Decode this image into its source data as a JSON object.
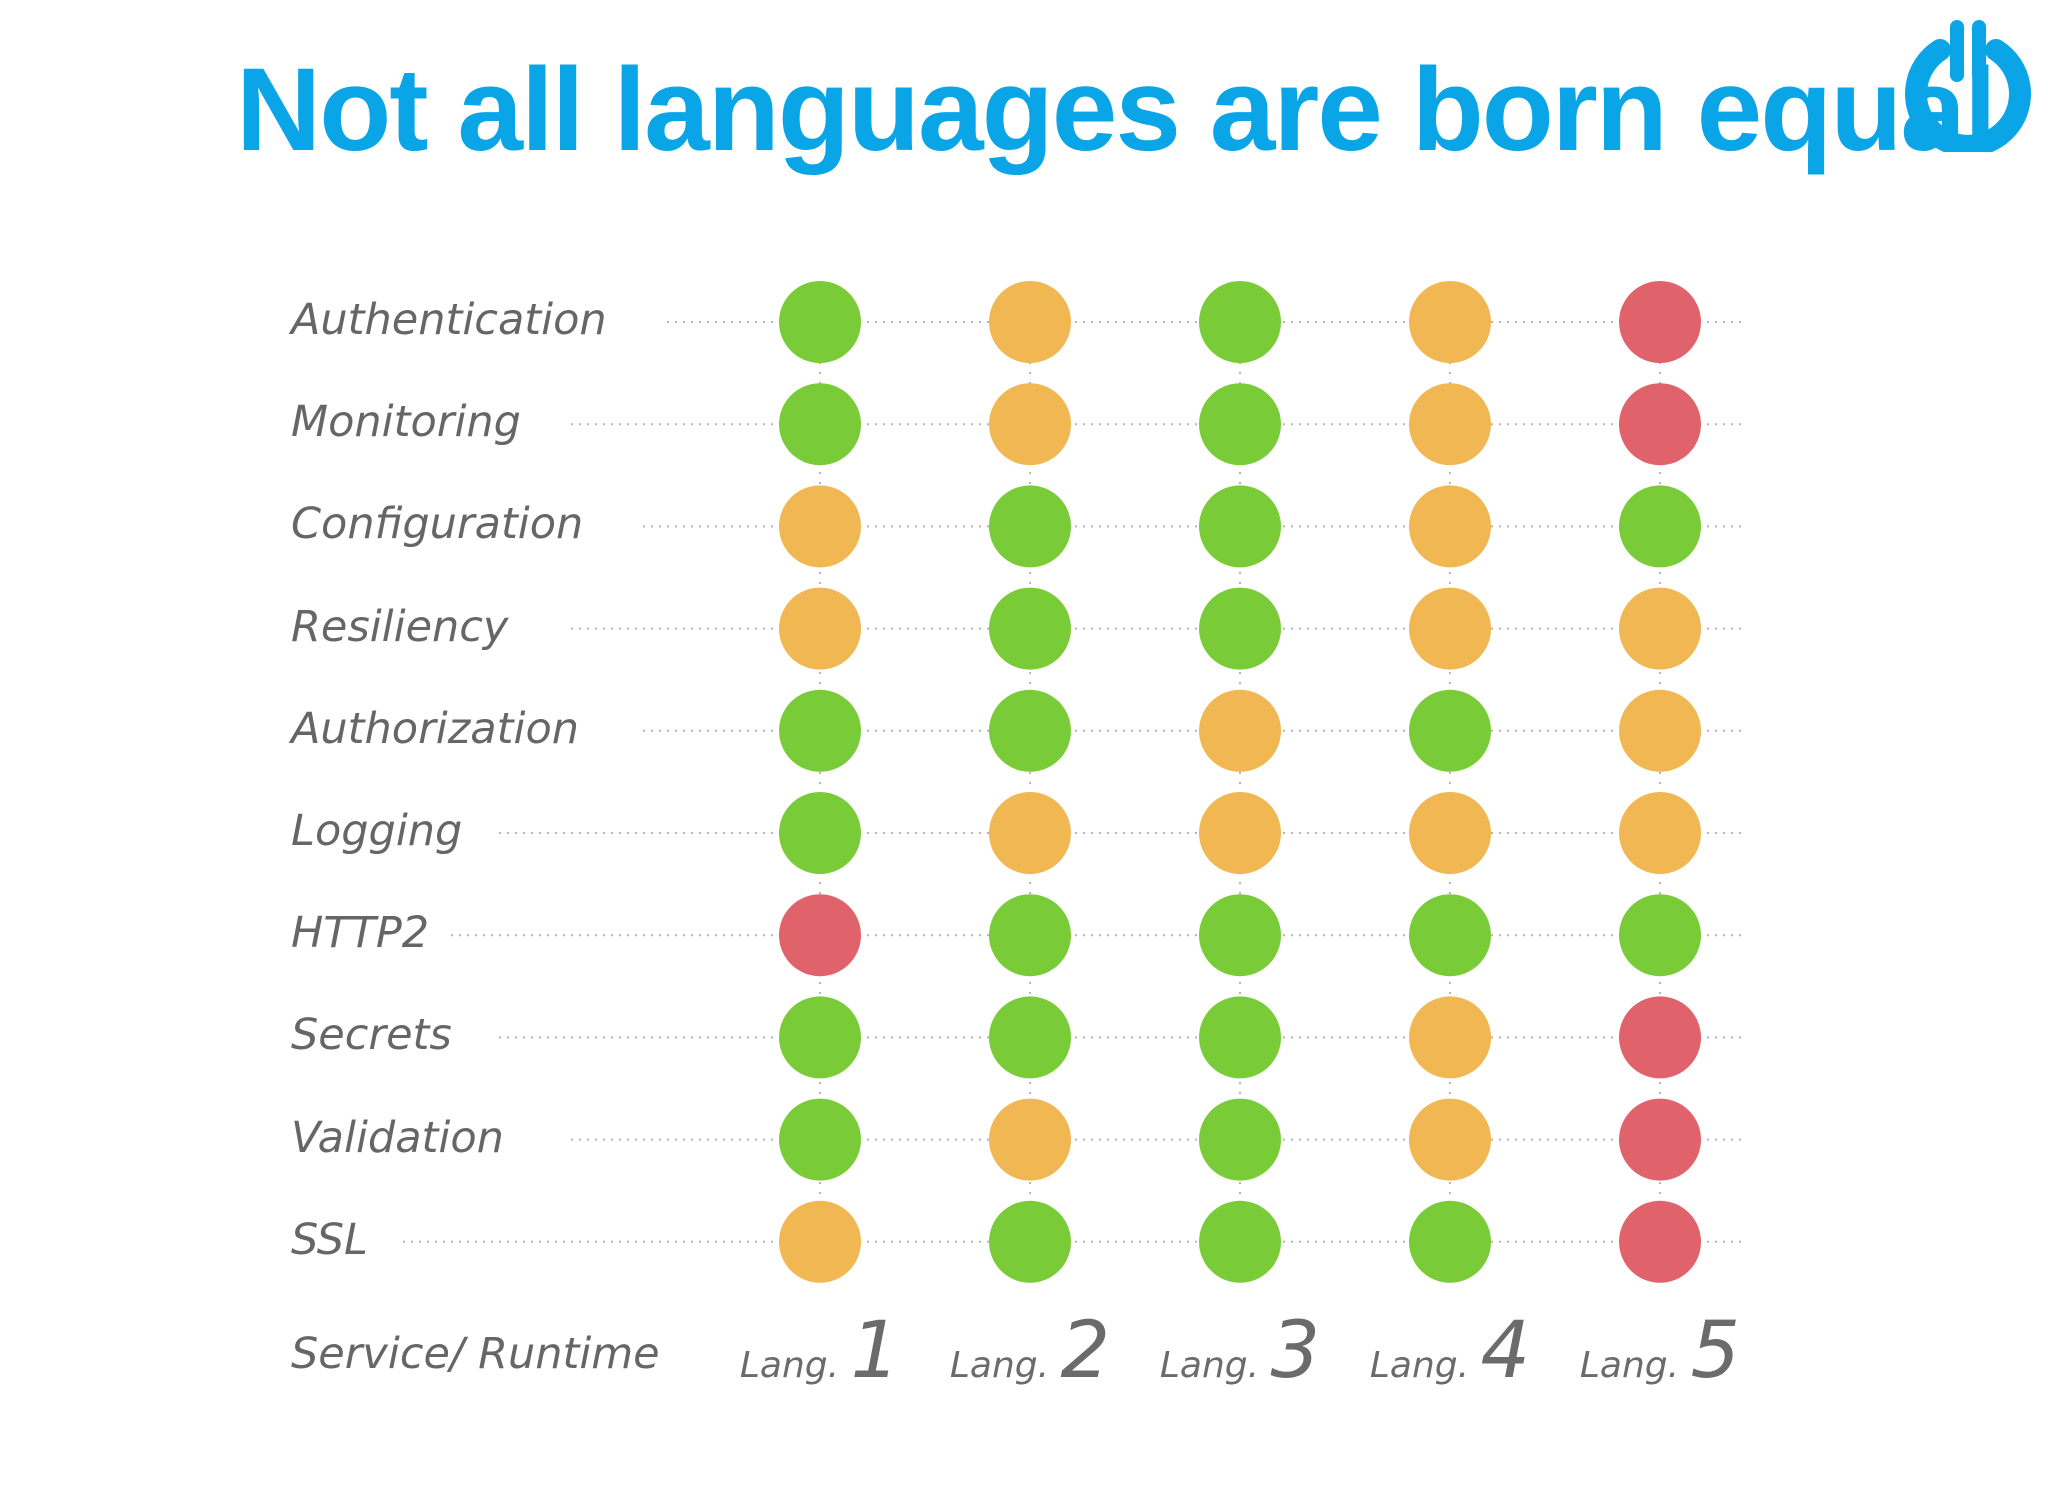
{
  "title": "Not all languages are born equal",
  "logo_icon": "power-icon",
  "colors": {
    "title": "#0aa5e6",
    "green": "#7acb38",
    "orange": "#f0b752",
    "red": "#e0626b",
    "dotted_line": "#b5b5b5",
    "label": "#666666"
  },
  "axis_label": "Service/ Runtime",
  "columns": [
    {
      "prefix": "Lang.",
      "number": "1"
    },
    {
      "prefix": "Lang.",
      "number": "2"
    },
    {
      "prefix": "Lang.",
      "number": "3"
    },
    {
      "prefix": "Lang.",
      "number": "4"
    },
    {
      "prefix": "Lang.",
      "number": "5"
    }
  ],
  "rows": [
    {
      "label": "Authentication",
      "statuses": [
        "green",
        "orange",
        "green",
        "orange",
        "red"
      ]
    },
    {
      "label": "Monitoring",
      "statuses": [
        "green",
        "orange",
        "green",
        "orange",
        "red"
      ]
    },
    {
      "label": "Configuration",
      "statuses": [
        "orange",
        "green",
        "green",
        "orange",
        "green"
      ]
    },
    {
      "label": "Resiliency",
      "statuses": [
        "orange",
        "green",
        "green",
        "orange",
        "orange"
      ]
    },
    {
      "label": "Authorization",
      "statuses": [
        "green",
        "green",
        "orange",
        "green",
        "orange"
      ]
    },
    {
      "label": "Logging",
      "statuses": [
        "green",
        "orange",
        "orange",
        "orange",
        "orange"
      ]
    },
    {
      "label": "HTTP2",
      "statuses": [
        "red",
        "green",
        "green",
        "green",
        "green"
      ]
    },
    {
      "label": "Secrets",
      "statuses": [
        "green",
        "green",
        "green",
        "orange",
        "red"
      ]
    },
    {
      "label": "Validation",
      "statuses": [
        "green",
        "orange",
        "green",
        "orange",
        "red"
      ]
    },
    {
      "label": "SSL",
      "statuses": [
        "orange",
        "green",
        "green",
        "green",
        "red"
      ]
    }
  ]
}
